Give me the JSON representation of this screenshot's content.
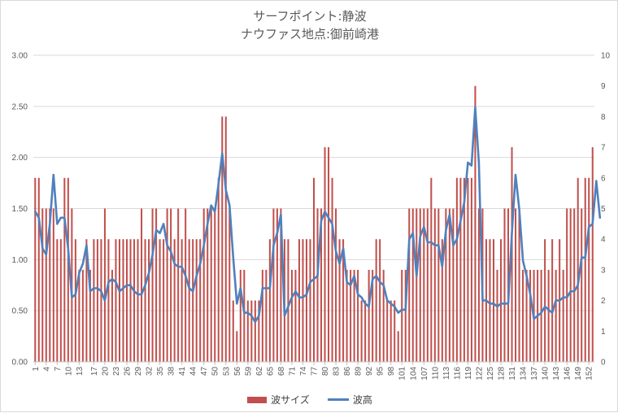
{
  "chart_data": {
    "type": "bar+line",
    "title": "サーフポイント:静波",
    "subtitle": "ナウファス地点:御前崎港",
    "x_ticks": [
      "1",
      "4",
      "7",
      "10",
      "13",
      "17",
      "20",
      "23",
      "26",
      "29",
      "32",
      "35",
      "38",
      "41",
      "44",
      "47",
      "50",
      "53",
      "56",
      "59",
      "62",
      "65",
      "68",
      "71",
      "74",
      "77",
      "80",
      "83",
      "86",
      "89",
      "92",
      "95",
      "98",
      "101",
      "104",
      "107",
      "110",
      "113",
      "116",
      "119",
      "122",
      "125",
      "128",
      "131",
      "134",
      "137",
      "140",
      "143",
      "146",
      "149",
      "152"
    ],
    "y_left": {
      "ticks": [
        "0.00",
        "0.50",
        "1.00",
        "1.50",
        "2.00",
        "2.50",
        "3.00"
      ],
      "ylim": [
        0,
        3
      ]
    },
    "y_right": {
      "ticks": [
        "0",
        "1",
        "2",
        "3",
        "4",
        "5",
        "6",
        "7",
        "8",
        "9",
        "10"
      ],
      "ylim": [
        0,
        10
      ]
    },
    "grid": "horizontal",
    "legend": "bottom",
    "colors": {
      "bar": "#c0504d",
      "line": "#4f81bd",
      "grid": "#d9d9d9",
      "axis": "#bfbfbf"
    },
    "series": [
      {
        "name": "波サイズ",
        "kind": "bar",
        "axis": "left",
        "values": [
          1.8,
          1.8,
          1.5,
          1.5,
          1.5,
          1.5,
          1.2,
          1.2,
          1.8,
          1.8,
          1.5,
          1.2,
          0.9,
          0.9,
          1.2,
          0.9,
          1.2,
          1.2,
          1.2,
          1.5,
          1.2,
          0.9,
          1.2,
          1.2,
          1.2,
          1.2,
          1.2,
          1.2,
          1.2,
          1.5,
          1.2,
          1.2,
          1.5,
          1.5,
          1.2,
          1.2,
          1.5,
          1.5,
          1.2,
          1.5,
          1.2,
          1.5,
          1.2,
          1.2,
          1.2,
          1.2,
          1.5,
          1.5,
          1.5,
          1.5,
          1.8,
          2.4,
          2.4,
          1.5,
          0.6,
          0.3,
          0.9,
          0.9,
          0.6,
          0.6,
          0.6,
          0.6,
          0.9,
          0.9,
          1.2,
          1.5,
          1.5,
          1.5,
          1.2,
          1.2,
          0.9,
          0.9,
          1.2,
          1.2,
          1.2,
          1.2,
          1.8,
          1.5,
          1.5,
          2.1,
          2.1,
          1.8,
          1.5,
          1.2,
          1.2,
          0.9,
          0.9,
          0.9,
          0.9,
          0.6,
          0.6,
          0.9,
          0.9,
          1.2,
          1.2,
          0.9,
          0.6,
          0.6,
          0.6,
          0.3,
          0.9,
          0.9,
          1.5,
          1.5,
          1.5,
          1.5,
          1.5,
          1.5,
          1.8,
          1.5,
          1.5,
          1.2,
          1.5,
          1.5,
          1.5,
          1.8,
          1.8,
          1.8,
          1.8,
          1.8,
          2.7,
          1.5,
          1.5,
          1.2,
          1.2,
          1.2,
          0.9,
          1.2,
          1.5,
          1.5,
          2.1,
          1.5,
          1.5,
          0.9,
          0.9,
          0.9,
          0.9,
          0.9,
          0.9,
          1.2,
          0.9,
          1.2,
          0.9,
          1.2,
          0.9,
          1.5,
          1.5,
          1.5,
          1.8,
          1.5,
          1.8,
          1.8,
          2.1
        ]
      },
      {
        "name": "波高",
        "kind": "line",
        "axis": "right",
        "values": [
          4.9,
          4.7,
          3.7,
          3.5,
          4.5,
          6.1,
          4.5,
          4.7,
          4.7,
          3.7,
          2.1,
          2.2,
          2.9,
          3.2,
          3.8,
          2.3,
          2.4,
          2.4,
          2.3,
          2.0,
          2.6,
          2.7,
          2.6,
          2.3,
          2.4,
          2.5,
          2.5,
          2.3,
          2.2,
          2.2,
          2.5,
          2.9,
          3.5,
          4.3,
          4.2,
          4.5,
          3.8,
          3.6,
          3.2,
          3.1,
          3.1,
          2.8,
          2.4,
          2.3,
          2.8,
          3.2,
          3.8,
          4.5,
          5.1,
          4.9,
          5.8,
          6.8,
          5.6,
          5.1,
          3.4,
          1.9,
          2.4,
          1.6,
          1.6,
          1.5,
          1.3,
          1.5,
          2.4,
          2.4,
          2.4,
          3.8,
          4.2,
          4.8,
          1.5,
          1.8,
          2.1,
          2.3,
          2.1,
          2.1,
          2.2,
          2.6,
          2.7,
          2.8,
          4.6,
          4.9,
          4.7,
          4.5,
          3.6,
          3.2,
          3.7,
          2.6,
          2.5,
          2.8,
          2.2,
          2.1,
          1.9,
          1.8,
          2.7,
          2.8,
          2.6,
          2.5,
          2.0,
          1.9,
          1.8,
          1.6,
          1.7,
          1.7,
          4.0,
          4.2,
          2.8,
          4.1,
          4.4,
          3.9,
          3.9,
          3.8,
          3.8,
          3.1,
          4.3,
          4.8,
          3.8,
          4.0,
          4.6,
          5.2,
          6.5,
          6.4,
          8.3,
          6.5,
          2.0,
          2.0,
          1.9,
          1.9,
          1.8,
          1.9,
          1.9,
          1.9,
          4.2,
          6.1,
          5.0,
          3.3,
          2.8,
          2.2,
          1.4,
          1.5,
          1.6,
          1.8,
          1.7,
          1.6,
          2.0,
          2.0,
          2.1,
          2.1,
          2.3,
          2.3,
          2.5,
          3.4,
          3.4,
          4.4,
          4.5,
          5.9,
          4.7
        ]
      }
    ]
  }
}
